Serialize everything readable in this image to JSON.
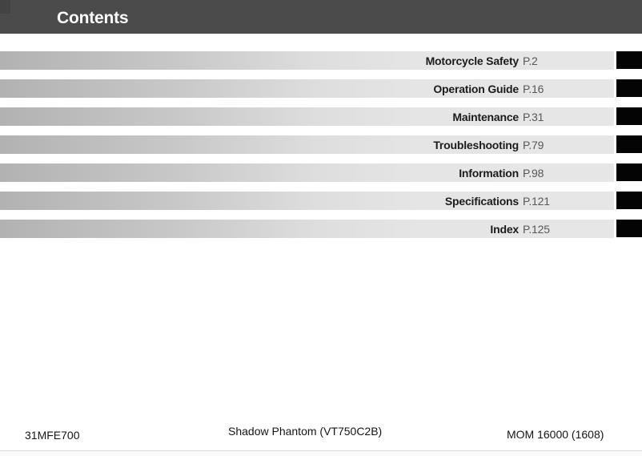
{
  "header": {
    "title": "Contents"
  },
  "toc": {
    "items": [
      {
        "label": "Motorcycle Safety",
        "page": "P.2"
      },
      {
        "label": "Operation Guide",
        "page": "P.16"
      },
      {
        "label": "Maintenance",
        "page": "P.31"
      },
      {
        "label": "Troubleshooting",
        "page": "P.79"
      },
      {
        "label": "Information",
        "page": "P.98"
      },
      {
        "label": "Specifications",
        "page": "P.121"
      },
      {
        "label": "Index",
        "page": "P.125"
      }
    ]
  },
  "footer": {
    "left": "31MFE700",
    "center": "Shadow Phantom (VT750C2B)",
    "right": "MOM 16000 (1608)"
  },
  "colors": {
    "header_bg": "#4c4b4b",
    "bar_gradient_start": "#b2b2b2",
    "bar_gradient_end": "#e6e6e6",
    "thumb_tab": "#040404",
    "chapter_title_text": "#1c1c1c",
    "page_ref_text": "#58585a"
  }
}
